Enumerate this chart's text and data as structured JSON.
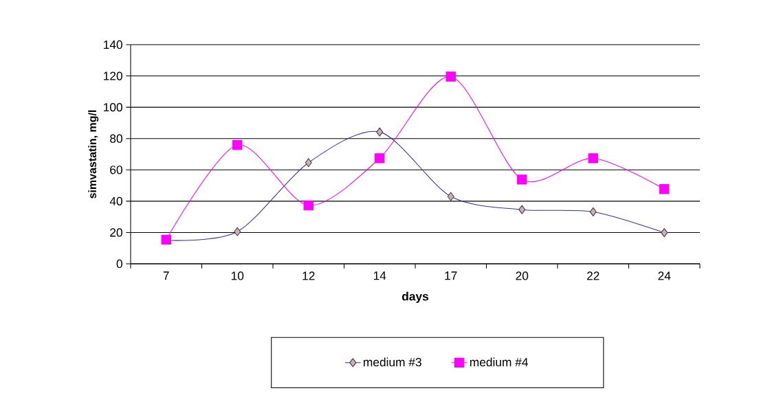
{
  "chart_data": {
    "type": "line",
    "xlabel": "days",
    "ylabel": "simvastatin, mg/l",
    "categories": [
      "7",
      "10",
      "12",
      "14",
      "17",
      "20",
      "22",
      "24"
    ],
    "series": [
      {
        "name": "medium #3",
        "color": "#333399",
        "marker": "diamond",
        "values": [
          15,
          20.5,
          64.6,
          84.2,
          43,
          34.6,
          33.2,
          19.9
        ]
      },
      {
        "name": "medium #4",
        "color": "#ff00ff",
        "marker": "square",
        "values": [
          15.4,
          75.9,
          37.3,
          67.4,
          119.6,
          53.8,
          67.4,
          47.7
        ]
      }
    ],
    "ylim": [
      0,
      140
    ],
    "yticks": [
      0,
      20,
      40,
      60,
      80,
      100,
      120,
      140
    ],
    "grid": "y",
    "legend": "bottom"
  }
}
